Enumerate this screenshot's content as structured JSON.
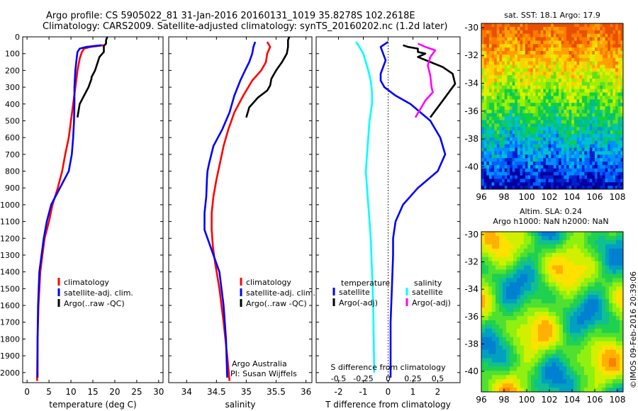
{
  "header": {
    "line1": "Argo profile: CS 5905022_81 31-Jan-2016 20160131_1019 35.8278S 102.2618E",
    "line2": "Climatology: CARS2009. Satellite-adjusted climatology: synTS_20160202.nc (1.2d later)"
  },
  "stamp": "©IMOS 09-Feb-2016 20:39:06",
  "chart_data": [
    {
      "type": "line",
      "panel": "temperature",
      "xlabel": "temperature (deg C)",
      "xlim": [
        -1,
        31
      ],
      "xticks": [
        0,
        5,
        10,
        15,
        20,
        25,
        30
      ],
      "ylim": [
        0,
        2060
      ],
      "yticks": [
        0,
        100,
        200,
        300,
        400,
        500,
        600,
        700,
        800,
        900,
        1000,
        1100,
        1200,
        1300,
        1400,
        1500,
        1600,
        1700,
        1800,
        1900,
        2000
      ],
      "legend": [
        "climatology",
        "satellite-adj. clim.",
        "Argo(..raw -QC)"
      ],
      "series": [
        {
          "name": "climatology",
          "color": "#ff0000",
          "x": [
            17.5,
            14.5,
            13,
            12.5,
            12,
            11.5,
            11,
            10.5,
            10,
            9.5,
            8.7,
            8,
            7,
            5.8,
            5,
            4,
            3.5,
            3,
            2.6,
            2.4,
            2.3,
            2.3
          ],
          "y": [
            50,
            60,
            70,
            90,
            130,
            200,
            300,
            400,
            500,
            600,
            700,
            800,
            900,
            1000,
            1100,
            1200,
            1300,
            1400,
            1600,
            1800,
            2000,
            2050
          ]
        },
        {
          "name": "satellite-adj. clim.",
          "color": "#0000ff",
          "x": [
            17,
            13.5,
            12,
            11.5,
            11.3,
            11,
            10.8,
            10.8,
            10.7,
            10.5,
            10.2,
            9.5,
            7.5,
            5.5,
            4.5,
            3.8,
            3.3,
            2.8,
            2.5,
            2.4,
            2.4
          ],
          "y": [
            50,
            60,
            70,
            90,
            130,
            200,
            300,
            400,
            500,
            600,
            700,
            800,
            900,
            1000,
            1100,
            1200,
            1300,
            1400,
            1600,
            1800,
            2030
          ]
        },
        {
          "name": "Argo(..raw -QC)",
          "color": "#000000",
          "x": [
            18.3,
            18,
            18,
            17.5,
            17.5,
            16.5,
            15.5,
            14.7,
            14.7,
            14,
            13,
            12,
            11.5
          ],
          "y": [
            0,
            20,
            40,
            55,
            90,
            120,
            200,
            240,
            250,
            300,
            350,
            400,
            480
          ]
        }
      ]
    },
    {
      "type": "line",
      "panel": "salinity",
      "xlabel": "salinity",
      "xlim": [
        33.7,
        36.1
      ],
      "xticks": [
        34,
        34.5,
        35,
        35.5,
        36
      ],
      "xticklabels": [
        "34",
        "34.5",
        "35",
        "35.5",
        "36"
      ],
      "ylim": [
        0,
        2060
      ],
      "legend": [
        "climatology",
        "satellite-adj. clim.",
        "Argo(..raw -QC)"
      ],
      "annotation": [
        "Argo Australia",
        "PI: Susan Wijffels"
      ],
      "series": [
        {
          "name": "climatology",
          "color": "#ff0000",
          "x": [
            35.35,
            35.4,
            35.35,
            35.33,
            35.25,
            35.1,
            34.95,
            34.8,
            34.7,
            34.62,
            34.56,
            34.5,
            34.45,
            34.42,
            34.42,
            34.44,
            34.48,
            34.55,
            34.62,
            34.68,
            34.72
          ],
          "y": [
            30,
            60,
            100,
            150,
            200,
            260,
            350,
            450,
            550,
            650,
            750,
            850,
            950,
            1050,
            1150,
            1250,
            1350,
            1500,
            1700,
            1900,
            2050
          ]
        },
        {
          "name": "satellite-adj. clim.",
          "color": "#0000ff",
          "x": [
            35.15,
            35.12,
            35.1,
            35.05,
            34.98,
            34.9,
            34.8,
            34.72,
            34.6,
            34.45,
            34.38,
            34.35,
            34.34,
            34.33,
            34.3,
            34.3,
            34.4,
            34.55,
            34.62,
            34.66,
            34.68
          ],
          "y": [
            30,
            60,
            100,
            150,
            200,
            260,
            350,
            450,
            550,
            650,
            750,
            800,
            850,
            950,
            1050,
            1150,
            1250,
            1400,
            1600,
            1800,
            2030
          ]
        },
        {
          "name": "Argo(..raw -QC)",
          "color": "#000000",
          "x": [
            35.72,
            35.7,
            35.7,
            35.7,
            35.68,
            35.6,
            35.5,
            35.42,
            35.4,
            35.35,
            35.2,
            35.05,
            35.0
          ],
          "y": [
            0,
            20,
            40,
            60,
            100,
            150,
            200,
            250,
            290,
            320,
            360,
            420,
            480
          ]
        }
      ]
    },
    {
      "type": "line",
      "panel": "difference",
      "xlabel": "T difference from climatology",
      "xlabel2": "S difference from climatology",
      "xlim": [
        -2.9,
        2.9
      ],
      "xticks": [
        -2,
        -1,
        0,
        1,
        2
      ],
      "xticks2": [
        -0.5,
        -0.25,
        0,
        0.25,
        0.5
      ],
      "xticklabels2": [
        "-0.5",
        "-0.25",
        "0",
        "0.25",
        "0.5"
      ],
      "ylim": [
        0,
        2060
      ],
      "legend_title_t": "temperature",
      "legend_title_s": "salinity",
      "legend": [
        "satellite",
        "Argo(-adj)",
        "satellite",
        "Argo(-adj)"
      ],
      "series": [
        {
          "name": "satellite",
          "color": "#0000ff",
          "x": [
            0,
            -0.3,
            -0.2,
            -0.1,
            -0.2,
            -0.3,
            -0.3,
            -0.15,
            0.3,
            0.9,
            1.7,
            2.1,
            2.3,
            2.0,
            1.2,
            0.6,
            0.3,
            0.2,
            0.2,
            0.15,
            0.1,
            0.1,
            0.1
          ],
          "y": [
            30,
            60,
            100,
            140,
            180,
            220,
            260,
            300,
            350,
            400,
            500,
            600,
            700,
            800,
            900,
            1000,
            1100,
            1200,
            1300,
            1500,
            1700,
            1900,
            2030
          ]
        },
        {
          "name": "Argo(-adj)",
          "color": "#000000",
          "x": [
            0.6,
            0.8,
            1.2,
            1.2,
            1.5,
            1.2,
            1.7,
            2.2,
            2.6,
            2.7,
            2.5,
            2.3,
            2.1,
            1.9,
            1.7
          ],
          "y": [
            50,
            60,
            70,
            90,
            100,
            120,
            150,
            180,
            220,
            280,
            320,
            360,
            400,
            440,
            480
          ]
        },
        {
          "name": "satellite",
          "color": "#00ffff",
          "x": [
            -1.3,
            -1.2,
            -1.0,
            -0.9,
            -0.8,
            -0.7,
            -0.65,
            -0.65,
            -0.75,
            -0.8,
            -0.85,
            -0.9,
            -0.85,
            -0.8,
            -0.75,
            -0.7,
            -0.65,
            -0.6,
            -0.58,
            -0.56
          ],
          "y": [
            30,
            50,
            100,
            150,
            200,
            260,
            330,
            400,
            500,
            600,
            700,
            800,
            900,
            1000,
            1100,
            1200,
            1400,
            1600,
            1800,
            2000
          ]
        },
        {
          "name": "Argo(-adj)",
          "color": "#ff00ff",
          "x": [
            1.2,
            1.5,
            1.9,
            1.7,
            1.6,
            1.7,
            1.75,
            1.8,
            1.5,
            1.3,
            1.1
          ],
          "y": [
            40,
            60,
            80,
            120,
            170,
            230,
            300,
            330,
            380,
            430,
            480
          ]
        }
      ]
    },
    {
      "type": "heatmap",
      "panel": "sst-map",
      "title": "sat. SST: 18.1  Argo: 17.9",
      "xlim": [
        96,
        108.5
      ],
      "ylim": [
        -41.6,
        -29.7
      ],
      "xticks": [
        96,
        98,
        100,
        102,
        104,
        106,
        108
      ],
      "yticks": [
        -30,
        -32,
        -34,
        -36,
        -38,
        -40
      ]
    },
    {
      "type": "heatmap",
      "panel": "sla-map",
      "title": "Altim. SLA: 0.24",
      "title2": "Argo h1000: NaN  h2000: NaN",
      "xlim": [
        96,
        108.5
      ],
      "ylim": [
        -41.5,
        -29.8
      ],
      "xticks": [
        96,
        98,
        100,
        102,
        104,
        106,
        108
      ],
      "yticks": [
        -30,
        -32,
        -34,
        -36,
        -38,
        -40
      ]
    }
  ]
}
